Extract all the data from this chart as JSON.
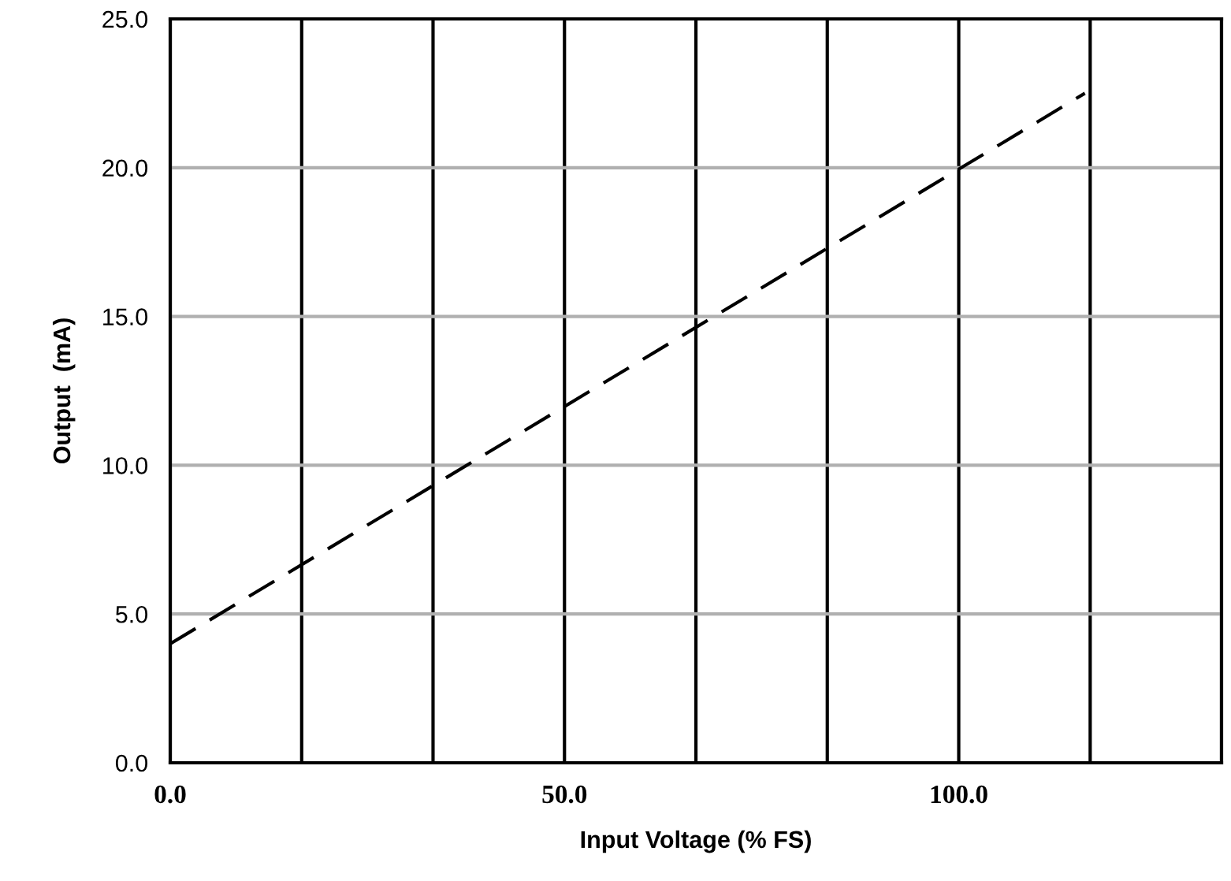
{
  "chart_data": {
    "type": "line",
    "xlabel": "Input Voltage (% FS)",
    "ylabel": "Output  (mA)",
    "series": [
      {
        "x": [
          0,
          116
        ],
        "values": [
          4.0,
          22.5
        ],
        "color": "#000000"
      }
    ],
    "line_style": "dashed",
    "marker": "none",
    "xlim": [
      0,
      133.33
    ],
    "xticks": [
      {
        "value": 0,
        "label": "0.0"
      },
      {
        "value": 16.67,
        "label": null
      },
      {
        "value": 33.33,
        "label": null
      },
      {
        "value": 50,
        "label": "50.0"
      },
      {
        "value": 66.67,
        "label": null
      },
      {
        "value": 83.33,
        "label": null
      },
      {
        "value": 100,
        "label": "100.0"
      },
      {
        "value": 116.67,
        "label": null
      },
      {
        "value": 133.33,
        "label": null
      }
    ],
    "ylim": [
      0,
      25
    ],
    "yticks": [
      {
        "value": 0,
        "label": "0.0"
      },
      {
        "value": 5,
        "label": "5.0"
      },
      {
        "value": 10,
        "label": "10.0"
      },
      {
        "value": 15,
        "label": "15.0"
      },
      {
        "value": 20,
        "label": "20.0"
      },
      {
        "value": 25,
        "label": "25.0"
      }
    ],
    "grid": true
  }
}
